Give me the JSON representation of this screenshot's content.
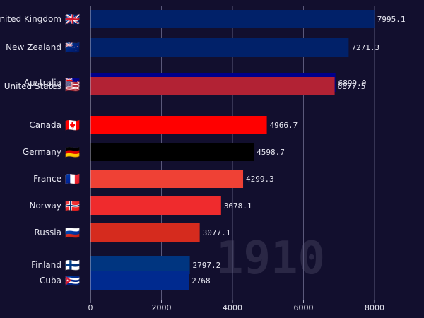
{
  "chart_data": {
    "type": "bar",
    "orientation": "horizontal",
    "categories": [
      "United Kingdom",
      "New Zealand",
      "Australia",
      "United States",
      "Canada",
      "Germany",
      "France",
      "Norway",
      "Russia",
      "Finland",
      "Cuba"
    ],
    "values": [
      7995.1,
      7271.3,
      6899.0,
      6877.5,
      4966.7,
      4598.7,
      4299.3,
      3678.1,
      3077.1,
      2797.2,
      2768
    ],
    "value_labels": [
      "7995.1",
      "7271.3",
      "6899.0",
      "6877.5",
      "4966.7",
      "4598.7",
      "4299.3",
      "3678.1",
      "3077.1",
      "2797.2",
      "2768"
    ],
    "colors": [
      "#012169",
      "#012169",
      "#00008b",
      "#b22234",
      "#ff0000",
      "#000000",
      "#ef4135",
      "#ef2b2d",
      "#d52b1e",
      "#003580",
      "#002a8f"
    ],
    "flags": [
      "🇬🇧",
      "🇳🇿",
      "🇦🇺",
      "🇺🇸",
      "🇨🇦",
      "🇩🇪",
      "🇫🇷",
      "🇳🇴",
      "🇷🇺",
      "🇫🇮",
      "🇨🇺"
    ],
    "xlim": [
      0,
      8000
    ],
    "x_ticks": [
      0,
      2000,
      4000,
      6000,
      8000
    ],
    "x_tick_labels": [
      "0",
      "2000",
      "4000",
      "6000",
      "8000"
    ],
    "year": "1910",
    "grid": true,
    "background_color": "#120f2e",
    "text_color": "#e6e6f0",
    "year_color": "#2a2745"
  }
}
